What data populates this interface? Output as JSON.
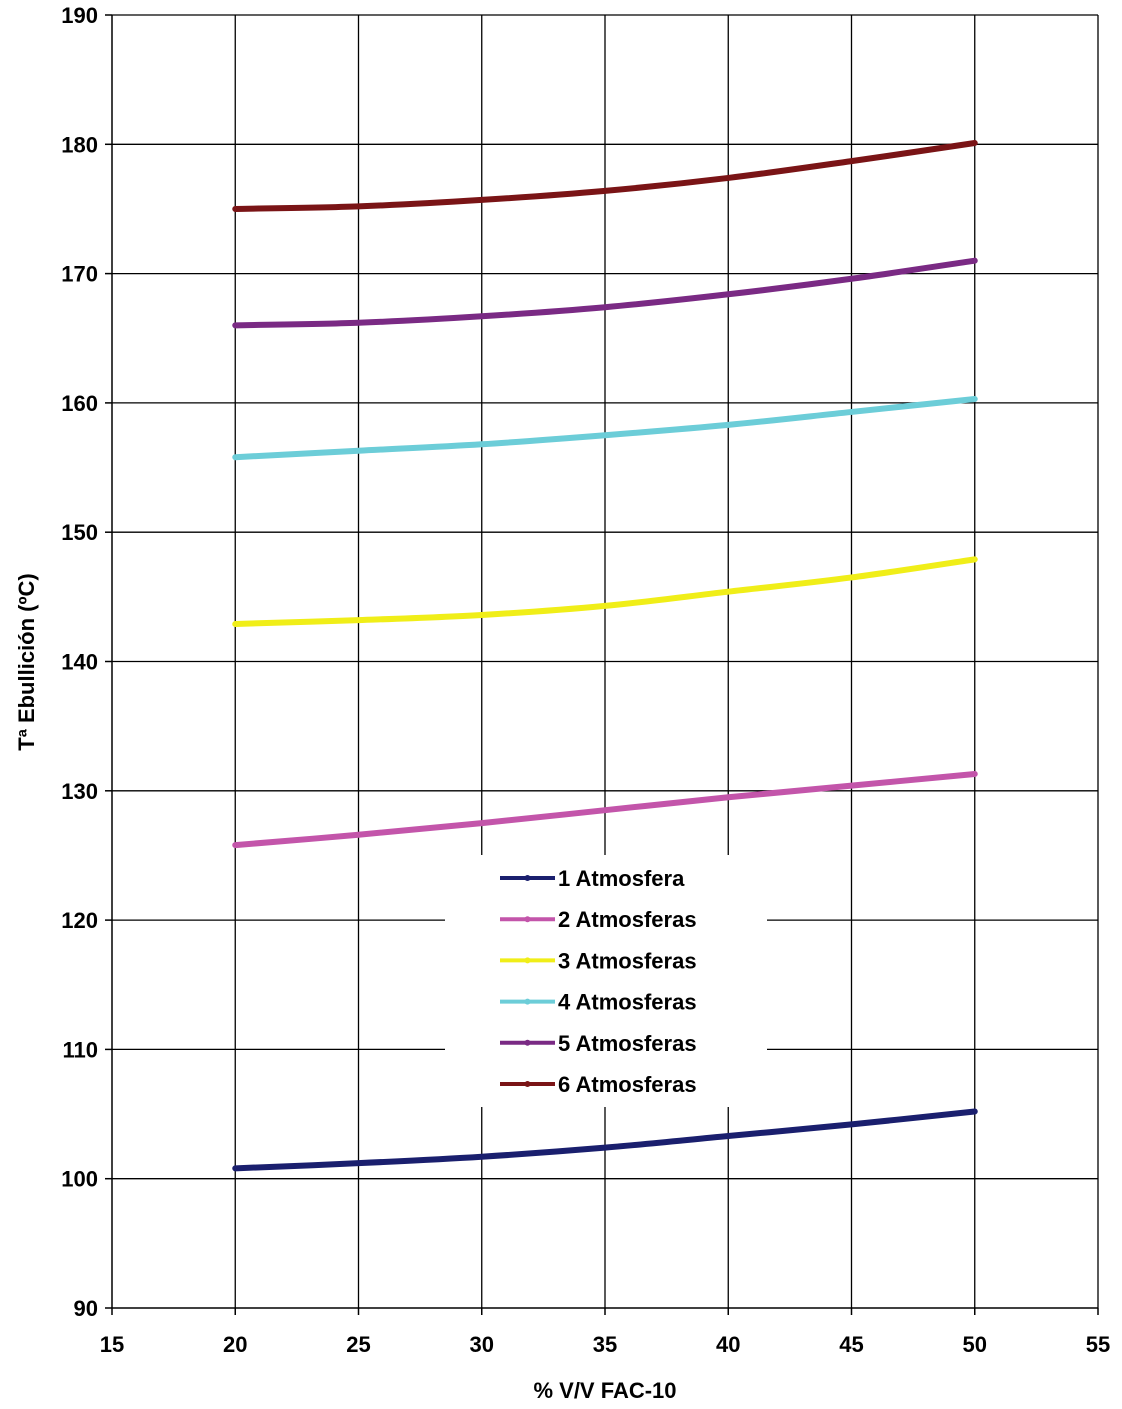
{
  "chart_data": {
    "type": "line",
    "xlabel": "% V/V FAC-10",
    "ylabel": "Tª Ebullición (ºC)",
    "xlim": [
      15,
      55
    ],
    "ylim": [
      90,
      190
    ],
    "xticks": [
      15,
      20,
      25,
      30,
      35,
      40,
      45,
      50,
      55
    ],
    "yticks": [
      90,
      100,
      110,
      120,
      130,
      140,
      150,
      160,
      170,
      180,
      190
    ],
    "grid": true,
    "legend_position": "center-bottom",
    "x": [
      20,
      25,
      30,
      35,
      40,
      45,
      50
    ],
    "series": [
      {
        "name": "1 Atmosfera",
        "color": "#1a1f6e",
        "marker": "diamond",
        "values": [
          100.8,
          101.2,
          101.7,
          102.4,
          103.3,
          104.2,
          105.2
        ]
      },
      {
        "name": "2 Atmosferas",
        "color": "#c355aa",
        "marker": "square",
        "values": [
          125.8,
          126.6,
          127.5,
          128.5,
          129.5,
          130.4,
          131.3
        ]
      },
      {
        "name": "3 Atmosferas",
        "color": "#f0ee18",
        "marker": "triangle",
        "values": [
          142.9,
          143.2,
          143.6,
          144.3,
          145.4,
          146.5,
          147.9
        ]
      },
      {
        "name": "4 Atmosferas",
        "color": "#6ccdd8",
        "marker": "x",
        "values": [
          155.8,
          156.3,
          156.8,
          157.5,
          158.3,
          159.3,
          160.3
        ]
      },
      {
        "name": "5 Atmosferas",
        "color": "#7a2a84",
        "marker": "star",
        "values": [
          166.0,
          166.2,
          166.7,
          167.4,
          168.4,
          169.6,
          171.0
        ]
      },
      {
        "name": "6 Atmosferas",
        "color": "#7a1416",
        "marker": "circle",
        "values": [
          175.0,
          175.2,
          175.7,
          176.4,
          177.4,
          178.7,
          180.1
        ]
      }
    ]
  }
}
